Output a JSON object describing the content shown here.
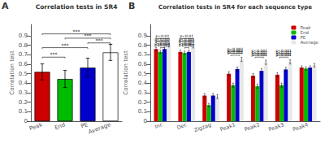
{
  "chart_data": [
    {
      "type": "bar",
      "title": "Correlation tests in SR4",
      "ylabel": "Correlation test",
      "annotations": [
        {
          "text": "A"
        }
      ],
      "categories": [
        "Peak",
        "End",
        "PE",
        "Average"
      ],
      "values": [
        0.52,
        0.445,
        0.565,
        0.725
      ],
      "errors": [
        0.085,
        0.09,
        0.1,
        0.085
      ],
      "colors": [
        "#cc0000",
        "#00bb00",
        "#0000cc",
        "#ffffff"
      ],
      "ylim": [
        0,
        1.02
      ],
      "yticks": [
        0,
        0.1,
        0.2,
        0.3,
        0.4,
        0.5,
        0.6,
        0.7,
        0.8,
        0.9
      ],
      "grid": false,
      "significance": [
        {
          "from": "Peak",
          "to": "End",
          "y": 0.675,
          "label": "***"
        },
        {
          "from": "Peak",
          "to": "PE",
          "y": 0.775,
          "label": "***"
        },
        {
          "from": "Peak",
          "to": "Average",
          "y": 0.92,
          "label": "***"
        },
        {
          "from": "End",
          "to": "Average",
          "y": 0.875,
          "label": "***"
        },
        {
          "from": "PE",
          "to": "Average",
          "y": 0.825,
          "label": "***"
        }
      ]
    },
    {
      "type": "bar",
      "title": "Correlation tests in SR4 for each sequence type",
      "ylabel": "Correlation test",
      "annotations": [
        {
          "text": "B"
        }
      ],
      "categories": [
        "Inc",
        "Dec",
        "Zigzag",
        "Peak1",
        "Peak2",
        "Peak3",
        "Peak4"
      ],
      "series": [
        {
          "name": "Peak",
          "color": "#cc0000",
          "values": [
            0.76,
            0.73,
            0.27,
            0.5,
            0.48,
            0.49,
            0.565
          ],
          "errors": [
            0.018,
            0.018,
            0.022,
            0.022,
            0.022,
            0.022,
            0.018
          ]
        },
        {
          "name": "End",
          "color": "#00bb00",
          "values": [
            0.73,
            0.72,
            0.17,
            0.38,
            0.37,
            0.38,
            0.555
          ],
          "errors": [
            0.018,
            0.018,
            0.018,
            0.022,
            0.022,
            0.022,
            0.018
          ]
        },
        {
          "name": "PE",
          "color": "#0000cc",
          "values": [
            0.76,
            0.73,
            0.27,
            0.55,
            0.53,
            0.545,
            0.565
          ],
          "errors": [
            0.018,
            0.018,
            0.022,
            0.022,
            0.022,
            0.022,
            0.018
          ]
        },
        {
          "name": "Average",
          "color": "#e8e8e8",
          "values": [
            0.8,
            0.79,
            0.26,
            0.65,
            0.62,
            0.625,
            0.59
          ],
          "errors": [
            0.018,
            0.018,
            0.022,
            0.022,
            0.022,
            0.022,
            0.018
          ]
        }
      ],
      "ylim": [
        0,
        1.02
      ],
      "yticks": [
        0,
        0.1,
        0.2,
        0.3,
        0.4,
        0.5,
        0.6,
        0.7,
        0.8,
        0.9
      ],
      "grid": false,
      "legend": "upper right",
      "significance": [
        {
          "category": "Inc",
          "x1": -0.27,
          "x2": 0.27,
          "y": 0.87,
          "label": "p<0.01"
        },
        {
          "category": "Inc",
          "x1": -0.27,
          "x2": 0.27,
          "y": 0.84,
          "label": "p<0.001"
        },
        {
          "category": "Inc",
          "x1": -0.18,
          "x2": 0.18,
          "y": 0.815,
          "label": "p<0.01"
        },
        {
          "category": "Inc",
          "x1": -0.18,
          "x2": 0.18,
          "y": 0.795,
          "label": "p<0.001"
        },
        {
          "category": "Inc",
          "x1": -0.09,
          "x2": 0.09,
          "y": 0.775,
          "label": "p<0.001"
        },
        {
          "category": "Dec",
          "x1": -0.27,
          "x2": 0.27,
          "y": 0.87,
          "label": "p<0.01"
        },
        {
          "category": "Dec",
          "x1": -0.27,
          "x2": 0.27,
          "y": 0.84,
          "label": "p<0.001"
        },
        {
          "category": "Dec",
          "x1": -0.18,
          "x2": 0.18,
          "y": 0.815,
          "label": "p<0.001"
        },
        {
          "category": "Dec",
          "x1": -0.18,
          "x2": 0.18,
          "y": 0.795,
          "label": "p<0.001"
        },
        {
          "category": "Dec",
          "x1": -0.09,
          "x2": 0.09,
          "y": 0.775,
          "label": "p<0.001"
        },
        {
          "category": "Peak1",
          "x1": -0.27,
          "x2": 0.27,
          "y": 0.735,
          "label": "p<0.001"
        },
        {
          "category": "Peak1",
          "x1": -0.27,
          "x2": 0.27,
          "y": 0.715,
          "label": "p<0.001"
        },
        {
          "category": "Peak1",
          "x1": -0.18,
          "x2": 0.18,
          "y": 0.695,
          "label": "p<0.001"
        },
        {
          "category": "Peak2",
          "x1": -0.27,
          "x2": 0.27,
          "y": 0.715,
          "label": "p<0.001"
        },
        {
          "category": "Peak2",
          "x1": -0.27,
          "x2": 0.27,
          "y": 0.695,
          "label": "p<0.001"
        },
        {
          "category": "Peak2",
          "x1": -0.18,
          "x2": 0.18,
          "y": 0.675,
          "label": "p<0.001"
        },
        {
          "category": "Peak3",
          "x1": -0.27,
          "x2": 0.27,
          "y": 0.715,
          "label": "p<0.001"
        },
        {
          "category": "Peak3",
          "x1": -0.27,
          "x2": 0.27,
          "y": 0.695,
          "label": "p<0.001"
        },
        {
          "category": "Peak3",
          "x1": -0.18,
          "x2": 0.18,
          "y": 0.675,
          "label": "p<0.001"
        }
      ]
    }
  ]
}
